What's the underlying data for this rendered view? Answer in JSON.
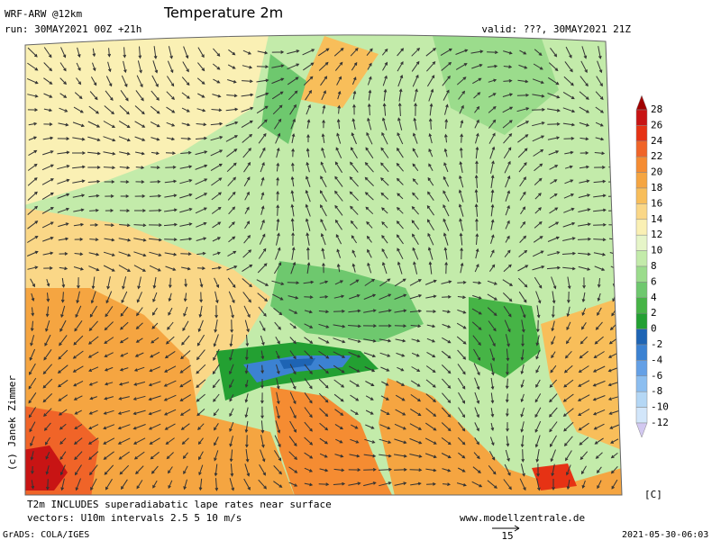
{
  "header": {
    "model": "WRF-ARW @12km",
    "title": "Temperature 2m",
    "run": "run: 30MAY2021 00Z +21h",
    "valid": "valid: ???, 30MAY2021 21Z"
  },
  "copyright": "(c) Janek Zimmer",
  "colorbar": {
    "unit": "[C]",
    "levels": [
      28,
      26,
      24,
      22,
      20,
      18,
      16,
      14,
      12,
      10,
      8,
      6,
      4,
      2,
      0,
      -2,
      -4,
      -6,
      -8,
      -10,
      -12
    ],
    "colors": [
      "#a00000",
      "#c81414",
      "#e63214",
      "#f06428",
      "#f58c32",
      "#f5a541",
      "#f8be5a",
      "#fad787",
      "#faf0b4",
      "#e6f5c8",
      "#c3ebaa",
      "#9bdc8c",
      "#6ec86e",
      "#46b446",
      "#23a032",
      "#1e64b4",
      "#3c82d2",
      "#64a0e6",
      "#8cbef0",
      "#b4d7f5",
      "#d2e6fa",
      "#d2c8f0"
    ]
  },
  "footer": {
    "note": "T2m INCLUDES superadiabatic lape rates near surface",
    "vectors": "vectors: U10m intervals 2.5 5 10 m/s",
    "website": "www.modellzentrale.de",
    "software": "GrADS: COLA/IGES",
    "reference_vector": "15",
    "timestamp": "2021-05-30-06:03"
  }
}
